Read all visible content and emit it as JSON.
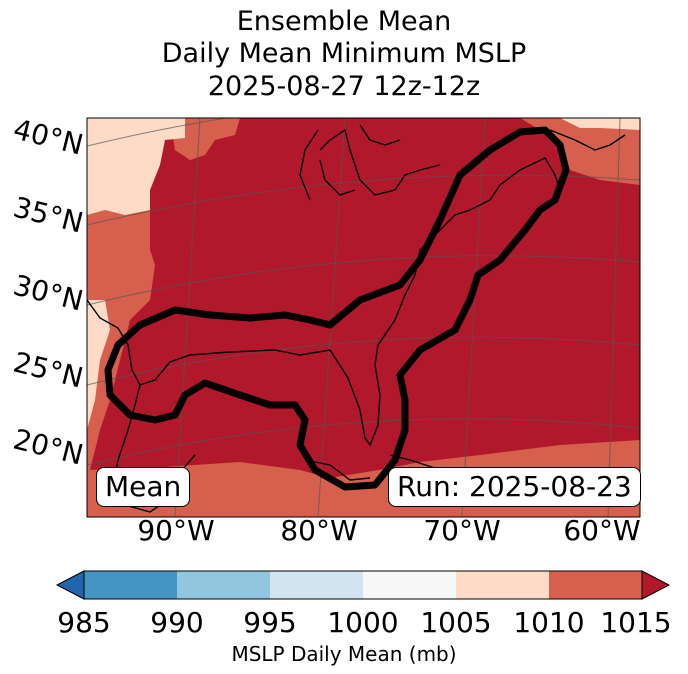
{
  "title": {
    "line1": "Ensemble Mean",
    "line2": "Daily Mean Minimum MSLP",
    "line3": "2025-08-27 12z-12z"
  },
  "map": {
    "lat_labels": [
      "40°N",
      "35°N",
      "30°N",
      "25°N",
      "20°N"
    ],
    "lon_labels": [
      "90°W",
      "80°W",
      "70°W",
      "60°W"
    ],
    "mean_box": "Mean",
    "run_box": "Run: 2025-08-23",
    "colors": {
      "c1005_1010": "#fddbc7",
      "c1010_1015": "#d6604d",
      "c1015_up": "#b2182b",
      "contour": "#000000"
    }
  },
  "colorbar": {
    "ticks": [
      "985",
      "990",
      "995",
      "1000",
      "1005",
      "1010",
      "1015"
    ],
    "label": "MSLP Daily Mean (mb)",
    "colors": [
      "#2166ac",
      "#4393c3",
      "#92c5de",
      "#d1e5f0",
      "#f7f7f7",
      "#fddbc7",
      "#d6604d",
      "#b2182b"
    ]
  }
}
